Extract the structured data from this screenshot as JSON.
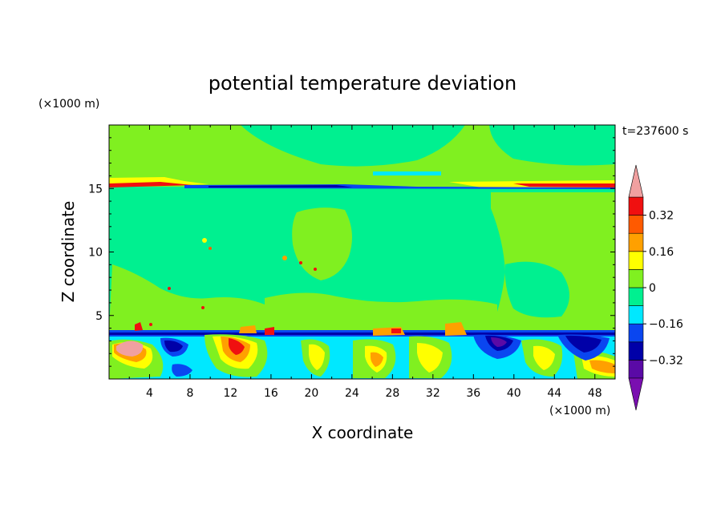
{
  "chart_data": {
    "type": "heatmap",
    "title": "potential temperature deviation",
    "xlabel": "X coordinate",
    "ylabel": "Z coordinate",
    "x_unit": "(×1000 m)",
    "y_unit": "(×1000 m)",
    "time_label": "t=237600 s",
    "xlim": [
      0,
      50
    ],
    "ylim": [
      0,
      20
    ],
    "x_ticks": [
      4,
      8,
      12,
      16,
      20,
      24,
      28,
      32,
      36,
      40,
      44,
      48
    ],
    "y_ticks": [
      5,
      10,
      15
    ],
    "colorbar": {
      "levels": [
        -0.48,
        -0.4,
        -0.32,
        -0.24,
        -0.16,
        -0.08,
        0,
        0.08,
        0.16,
        0.24,
        0.32,
        0.4
      ],
      "tick_labels": [
        "0.32",
        "0.16",
        "0",
        "−0.16",
        "−0.32"
      ],
      "tick_values": [
        0.32,
        0.16,
        0,
        -0.16,
        -0.32
      ],
      "extend": "both",
      "colors": [
        "#7a0fb0",
        "#5a0aa6",
        "#0000a8",
        "#0a46f0",
        "#00e8ff",
        "#00f090",
        "#80f020",
        "#ffff00",
        "#ffa000",
        "#ff5a00",
        "#f01010",
        "#f0a0a0"
      ]
    },
    "features": [
      {
        "name": "tropopause warm layer",
        "z": 15.3,
        "x_range": [
          0,
          50
        ],
        "value": 0.3
      },
      {
        "name": "tropopause cold layer",
        "z": 14.9,
        "x_range": [
          8,
          50
        ],
        "value": -0.3
      },
      {
        "name": "boundary layer cold cap",
        "z": 3.6,
        "x_range": [
          0,
          50
        ],
        "value": -0.3
      },
      {
        "name": "warm anomaly",
        "x": 1.5,
        "z": 2.7,
        "value": 0.45
      }
    ]
  }
}
